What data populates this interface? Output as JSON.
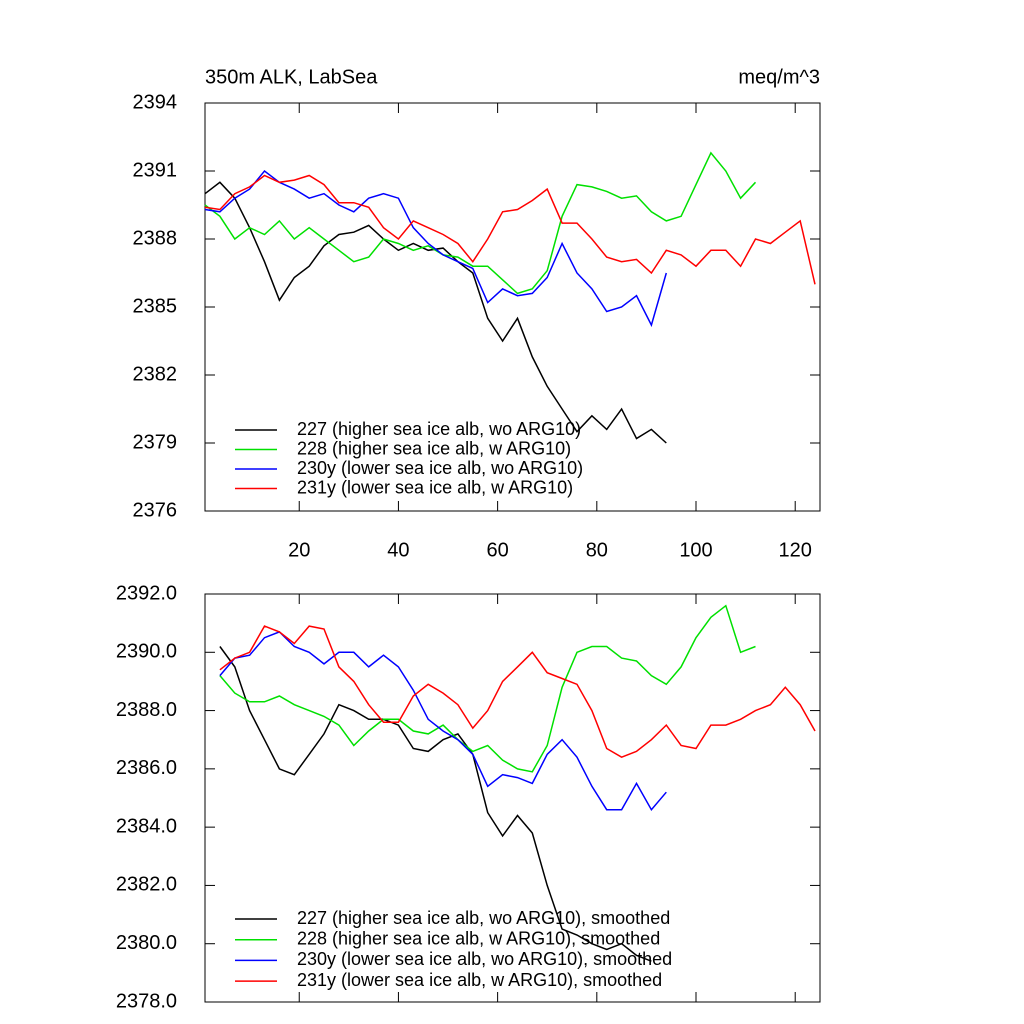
{
  "chart_data": [
    {
      "type": "line",
      "title": "350m ALK, LabSea",
      "subtitle": "meq/m^3",
      "x": [
        1,
        4,
        7,
        10,
        13,
        16,
        19,
        22,
        25,
        28,
        31,
        34,
        37,
        40,
        43,
        46,
        49,
        52,
        55,
        58,
        61,
        64,
        67,
        70,
        73,
        76,
        79,
        82,
        85,
        88,
        91,
        94,
        97,
        100,
        103,
        106,
        109,
        112,
        115,
        118,
        121,
        124
      ],
      "xlim": [
        1,
        125
      ],
      "xticks": [
        20,
        40,
        60,
        80,
        100,
        120
      ],
      "ylim": [
        2376,
        2394
      ],
      "yticks": [
        2376,
        2379,
        2382,
        2385,
        2388,
        2391,
        2394
      ],
      "legend": "lower left",
      "series": [
        {
          "name": "227 (higher sea ice alb, wo ARG10)",
          "color": "#000000",
          "values": [
            2390.0,
            2390.5,
            2389.8,
            2388.5,
            2387.0,
            2385.3,
            2386.3,
            2386.8,
            2387.7,
            2388.2,
            2388.3,
            2388.6,
            2388.0,
            2387.5,
            2387.8,
            2387.5,
            2387.6,
            2387.0,
            2386.5,
            2384.5,
            2383.5,
            2384.5,
            2382.8,
            2381.5,
            2380.5,
            2379.5,
            2380.2,
            2379.6,
            2380.5,
            2379.2,
            2379.6,
            2379.0,
            null,
            null,
            null,
            null,
            null,
            null,
            null,
            null,
            null,
            null
          ]
        },
        {
          "name": "228 (higher sea ice alb, w ARG10)",
          "color": "#00e000",
          "values": [
            2389.5,
            2389.0,
            2388.0,
            2388.5,
            2388.2,
            2388.8,
            2388.0,
            2388.5,
            2388.0,
            2387.5,
            2387.0,
            2387.2,
            2388.0,
            2387.8,
            2387.5,
            2387.7,
            2387.3,
            2387.2,
            2386.8,
            2386.8,
            2386.2,
            2385.6,
            2385.8,
            2386.6,
            2389.0,
            2390.4,
            2390.3,
            2390.1,
            2389.8,
            2389.9,
            2389.2,
            2388.8,
            2389.0,
            2390.4,
            2391.8,
            2391.0,
            2389.8,
            2390.5,
            null,
            null,
            null,
            null
          ]
        },
        {
          "name": "230y (lower sea ice alb, wo ARG10)",
          "color": "#0000ff",
          "values": [
            2389.3,
            2389.2,
            2389.8,
            2390.2,
            2391.0,
            2390.5,
            2390.2,
            2389.8,
            2390.0,
            2389.5,
            2389.2,
            2389.8,
            2390.0,
            2389.8,
            2388.5,
            2387.8,
            2387.3,
            2387.0,
            2386.7,
            2385.2,
            2385.8,
            2385.5,
            2385.6,
            2386.3,
            2387.8,
            2386.5,
            2385.8,
            2384.8,
            2385.0,
            2385.5,
            2384.2,
            2386.5,
            null,
            null,
            null,
            null,
            null,
            null,
            null,
            null,
            null,
            null
          ]
        },
        {
          "name": "231y (lower sea ice alb, w ARG10)",
          "color": "#ff0000",
          "values": [
            2389.4,
            2389.3,
            2390.0,
            2390.3,
            2390.8,
            2390.5,
            2390.6,
            2390.8,
            2390.4,
            2389.6,
            2389.6,
            2389.4,
            2388.5,
            2388.0,
            2388.8,
            2388.5,
            2388.2,
            2387.8,
            2387.0,
            2388.0,
            2389.2,
            2389.3,
            2389.7,
            2390.2,
            2388.7,
            2388.7,
            2388.0,
            2387.2,
            2387.0,
            2387.1,
            2386.5,
            2387.5,
            2387.3,
            2386.8,
            2387.5,
            2387.5,
            2386.8,
            2388.0,
            2387.8,
            2388.3,
            2388.8,
            2386.0
          ]
        }
      ]
    },
    {
      "type": "line",
      "x": [
        1,
        4,
        7,
        10,
        13,
        16,
        19,
        22,
        25,
        28,
        31,
        34,
        37,
        40,
        43,
        46,
        49,
        52,
        55,
        58,
        61,
        64,
        67,
        70,
        73,
        76,
        79,
        82,
        85,
        88,
        91,
        94,
        97,
        100,
        103,
        106,
        109,
        112,
        115,
        118,
        121,
        124
      ],
      "xlim": [
        1,
        125
      ],
      "xticks": [
        20,
        40,
        60,
        80,
        100,
        120
      ],
      "ylim": [
        2378,
        2392
      ],
      "yticks": [
        {
          "value": 2378,
          "label": "2378.0"
        },
        {
          "value": 2380,
          "label": "2380.0"
        },
        {
          "value": 2382,
          "label": "2382.0"
        },
        {
          "value": 2384,
          "label": "2384.0"
        },
        {
          "value": 2386,
          "label": "2386.0"
        },
        {
          "value": 2388,
          "label": "2388.0"
        },
        {
          "value": 2390,
          "label": "2390.0"
        },
        {
          "value": 2392,
          "label": "2392.0"
        }
      ],
      "legend": "lower left",
      "series": [
        {
          "name": "227 (higher sea ice alb, wo ARG10), smoothed",
          "color": "#000000",
          "values": [
            null,
            2390.2,
            2389.5,
            2388.0,
            2387.0,
            2386.0,
            2385.8,
            2386.5,
            2387.2,
            2388.2,
            2388.0,
            2387.7,
            2387.7,
            2387.5,
            2386.7,
            2386.6,
            2387.0,
            2387.2,
            2386.5,
            2384.5,
            2383.7,
            2384.4,
            2383.8,
            2382.0,
            2380.5,
            2380.3,
            2380.0,
            2379.8,
            2380.0,
            2379.6,
            2379.4,
            null,
            null,
            null,
            null,
            null,
            null,
            null,
            null,
            null,
            null,
            null
          ]
        },
        {
          "name": "228 (higher sea ice alb, w ARG10), smoothed",
          "color": "#00e000",
          "values": [
            null,
            2389.2,
            2388.6,
            2388.3,
            2388.3,
            2388.5,
            2388.2,
            2388.0,
            2387.8,
            2387.5,
            2386.8,
            2387.3,
            2387.7,
            2387.7,
            2387.3,
            2387.2,
            2387.5,
            2387.0,
            2386.6,
            2386.8,
            2386.3,
            2386.0,
            2385.9,
            2386.8,
            2388.8,
            2390.0,
            2390.2,
            2390.2,
            2389.8,
            2389.7,
            2389.2,
            2388.9,
            2389.5,
            2390.5,
            2391.2,
            2391.6,
            2390.0,
            2390.2,
            null,
            null,
            null,
            null
          ]
        },
        {
          "name": "230y (lower sea ice alb, wo ARG10), smoothed",
          "color": "#0000ff",
          "values": [
            null,
            2389.2,
            2389.8,
            2389.9,
            2390.5,
            2390.7,
            2390.2,
            2390.0,
            2389.6,
            2390.0,
            2390.0,
            2389.5,
            2389.9,
            2389.5,
            2388.7,
            2387.7,
            2387.3,
            2387.0,
            2386.5,
            2385.4,
            2385.8,
            2385.7,
            2385.5,
            2386.5,
            2387.0,
            2386.4,
            2385.4,
            2384.6,
            2384.6,
            2385.5,
            2384.6,
            2385.2,
            null,
            null,
            null,
            null,
            null,
            null,
            null,
            null,
            null,
            null
          ]
        },
        {
          "name": "231y (lower sea ice alb, w ARG10), smoothed",
          "color": "#ff0000",
          "values": [
            null,
            2389.4,
            2389.8,
            2390.0,
            2390.9,
            2390.7,
            2390.3,
            2390.9,
            2390.8,
            2389.5,
            2389.0,
            2388.2,
            2387.6,
            2387.6,
            2388.5,
            2388.9,
            2388.6,
            2388.2,
            2387.4,
            2388.0,
            2389.0,
            2389.5,
            2390.0,
            2389.3,
            2389.1,
            2388.9,
            2388.0,
            2386.7,
            2386.4,
            2386.6,
            2387.0,
            2387.5,
            2386.8,
            2386.7,
            2387.5,
            2387.5,
            2387.7,
            2388.0,
            2388.2,
            2388.8,
            2388.2,
            2387.3
          ]
        }
      ]
    }
  ]
}
